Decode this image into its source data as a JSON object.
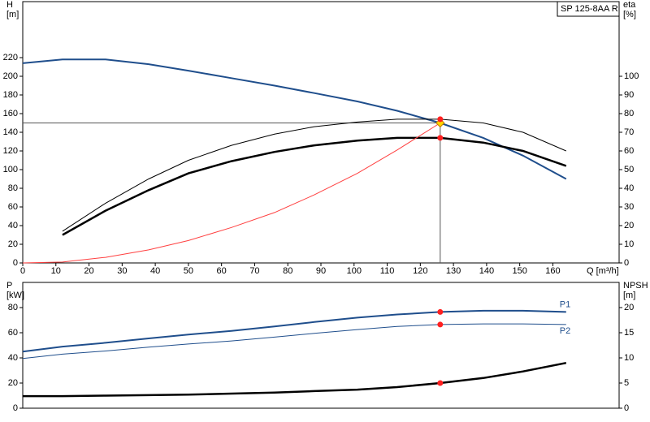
{
  "chart_data": [
    {
      "type": "line",
      "title": "SP 125-8AA R",
      "xlabel": "Q [m³/h]",
      "ylabel": "H",
      "yunit": "[m]",
      "y2label": "eta",
      "y2unit": "[%]",
      "x": [
        0,
        12,
        25,
        38,
        50,
        63,
        76,
        88,
        101,
        113,
        126,
        139,
        151,
        164
      ],
      "xlim": [
        0,
        180
      ],
      "xticks": [
        0,
        10,
        20,
        30,
        40,
        50,
        60,
        70,
        80,
        90,
        100,
        110,
        120,
        130,
        140,
        150,
        160
      ],
      "ylim": [
        0,
        280
      ],
      "yticks": [
        0,
        20,
        40,
        60,
        80,
        100,
        120,
        140,
        160,
        180,
        200,
        220
      ],
      "y2lim": [
        0,
        140
      ],
      "y2ticks": [
        0,
        10,
        20,
        30,
        40,
        50,
        60,
        70,
        80,
        90,
        100
      ],
      "series": [
        {
          "color": "#1f4e8c",
          "values": [
            214,
            218,
            218,
            213,
            206,
            198,
            190,
            182,
            173,
            163,
            150,
            134,
            115,
            90
          ]
        },
        {
          "color": "#000000",
          "axis": "y2",
          "values": [
            null,
            17,
            32,
            45,
            55,
            63,
            69,
            73,
            75.5,
            77,
            77,
            75,
            70,
            60
          ]
        },
        {
          "color": "#000000",
          "axis": "y2",
          "values": [
            null,
            15,
            28,
            39,
            48,
            54.5,
            59.5,
            63,
            65.5,
            67,
            67,
            64.5,
            60,
            52
          ]
        },
        {
          "color": "#ff4040",
          "values": [
            0,
            1,
            6,
            14,
            24,
            38,
            54,
            73,
            96,
            121,
            150,
            null,
            null,
            null
          ]
        }
      ],
      "markers": [
        {
          "x": 126,
          "y": 150
        },
        {
          "x": 126,
          "y": 77,
          "axis": "y2"
        },
        {
          "x": 126,
          "y": 67,
          "axis": "y2"
        }
      ]
    },
    {
      "type": "line",
      "ylabel": "P",
      "yunit": "[kW]",
      "y2label": "NPSH",
      "y2unit": "[m]",
      "x": [
        0,
        12,
        25,
        38,
        50,
        63,
        76,
        88,
        101,
        113,
        126,
        139,
        151,
        164
      ],
      "xlim": [
        0,
        180
      ],
      "ylim": [
        0,
        100
      ],
      "yticks": [
        0,
        20,
        40,
        60,
        80
      ],
      "y2lim": [
        0,
        25
      ],
      "y2ticks": [
        0,
        5,
        10,
        15,
        20
      ],
      "series": [
        {
          "name": "P1",
          "color": "#1f4e8c",
          "values": [
            45,
            49,
            52,
            55.5,
            58.5,
            61.5,
            65,
            68.5,
            72,
            74.5,
            76.5,
            77.5,
            77.5,
            76.5
          ]
        },
        {
          "name": "P2",
          "color": "#1f4e8c",
          "values": [
            39.5,
            43,
            45.5,
            48.5,
            51,
            53.5,
            56.5,
            59.5,
            62.5,
            65,
            66.5,
            67,
            67,
            66.5
          ]
        },
        {
          "color": "#000000",
          "axis": "y2",
          "values": [
            2.4,
            2.4,
            2.5,
            2.6,
            2.7,
            2.9,
            3.1,
            3.4,
            3.7,
            4.2,
            5,
            6,
            7.3,
            9
          ]
        }
      ],
      "markers": [
        {
          "x": 126,
          "y": 76.5
        },
        {
          "x": 126,
          "y": 66.5
        },
        {
          "x": 126,
          "y": 5,
          "axis": "y2"
        }
      ]
    }
  ]
}
